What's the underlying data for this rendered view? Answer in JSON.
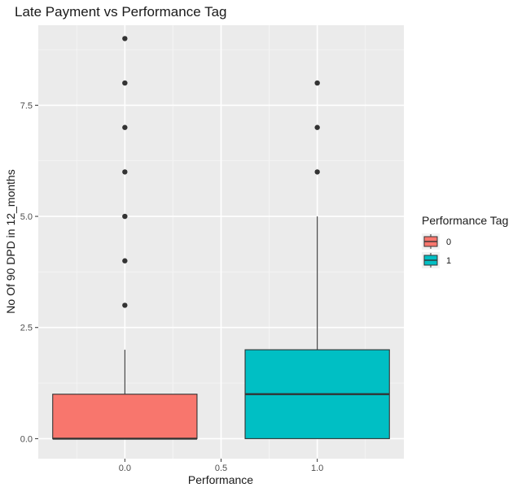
{
  "chart_data": {
    "type": "boxplot",
    "title": "Late Payment vs Performance Tag",
    "xlabel": "Performance",
    "ylabel": "No Of 90 DPD in 12_months",
    "xlim": [
      -0.45,
      1.45
    ],
    "ylim": [
      -0.45,
      9.3
    ],
    "x_ticks": [
      0.0,
      0.5,
      1.0
    ],
    "x_tick_labels": [
      "0.0",
      "0.5",
      "1.0"
    ],
    "y_ticks": [
      0.0,
      2.5,
      5.0,
      7.5
    ],
    "y_tick_labels": [
      "0.0",
      "2.5",
      "5.0",
      "7.5"
    ],
    "grid": true,
    "legend": {
      "title": "Performance Tag",
      "position": "right",
      "entries": [
        {
          "label": "0",
          "color": "#F8766D"
        },
        {
          "label": "1",
          "color": "#00BFC4"
        }
      ]
    },
    "series": [
      {
        "group": "0",
        "x": 0.0,
        "color": "#F8766D",
        "box_width": 0.75,
        "min": 0,
        "q1": 0,
        "median": 0,
        "q3": 1,
        "max": 2,
        "outliers": [
          3,
          4,
          5,
          6,
          7,
          8,
          9
        ]
      },
      {
        "group": "1",
        "x": 1.0,
        "color": "#00BFC4",
        "box_width": 0.75,
        "min": 0,
        "q1": 0,
        "median": 1,
        "q3": 2,
        "max": 5,
        "outliers": [
          6,
          7,
          8
        ]
      }
    ]
  },
  "colors": {
    "panel_background": "#EBEBEB",
    "grid_major": "#FFFFFF",
    "grid_minor": "#F5F5F5",
    "box_outline": "#333333",
    "outlier": "#333333"
  }
}
